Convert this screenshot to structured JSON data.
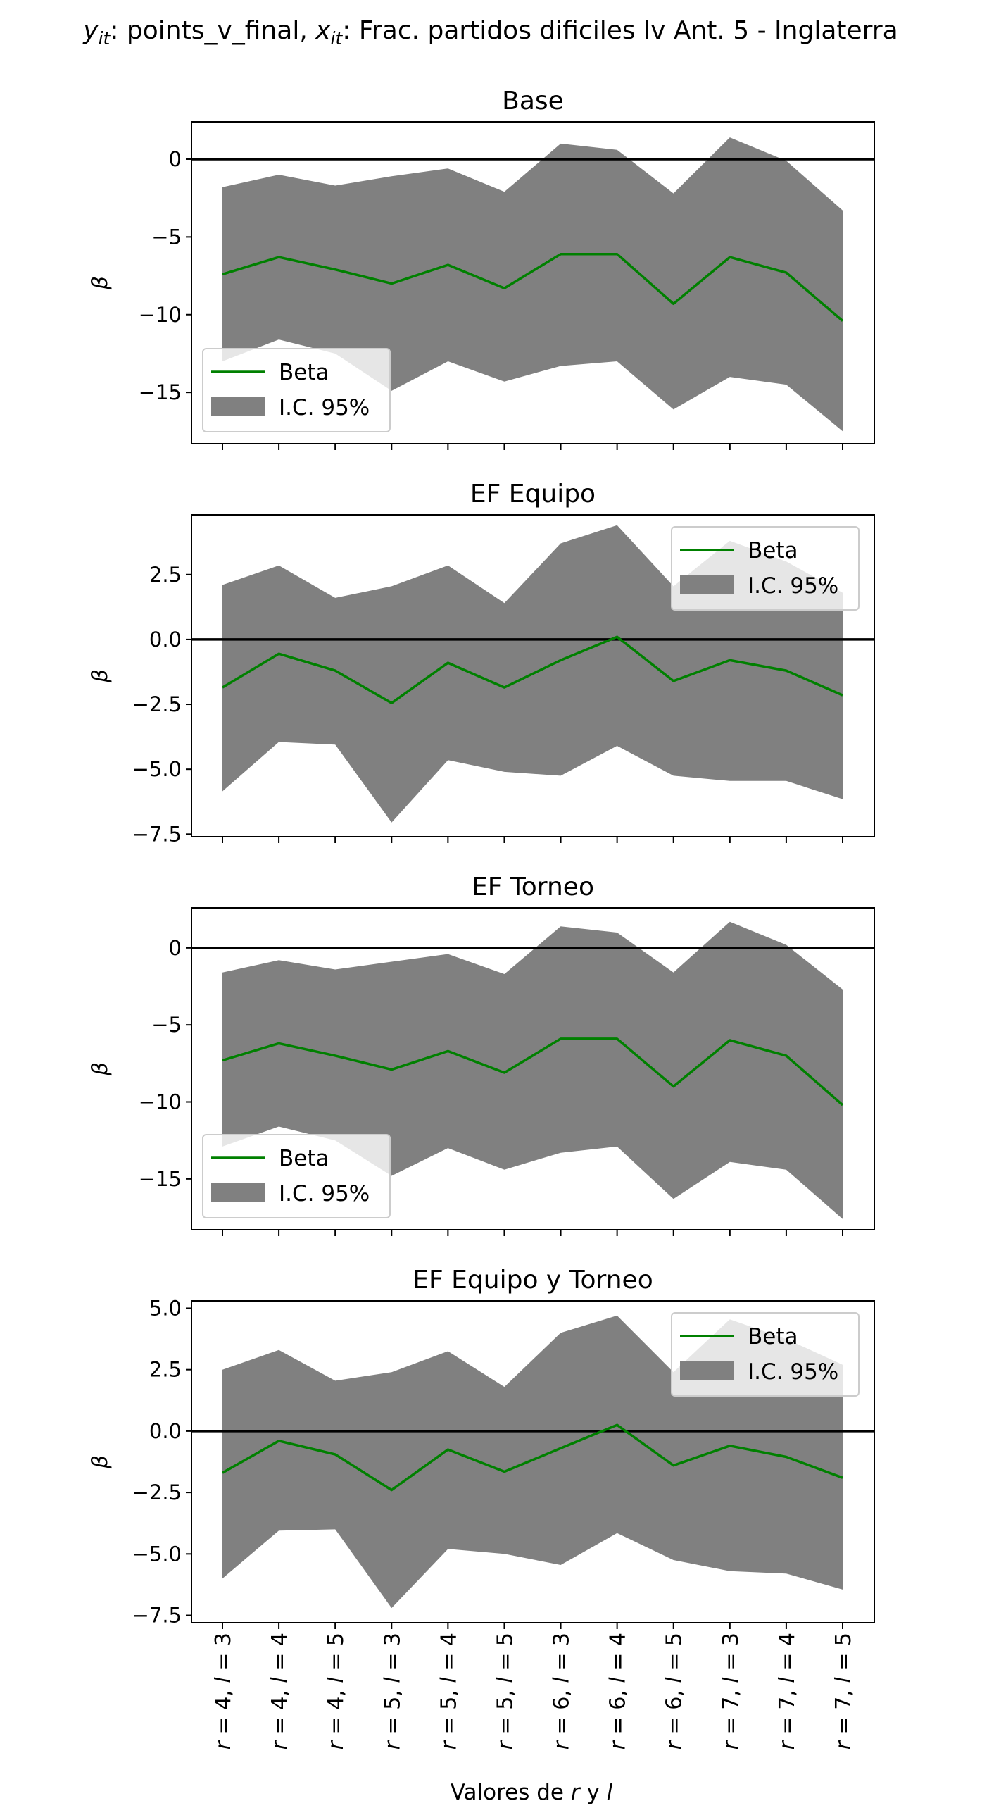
{
  "suptitle": {
    "y_sym": "y",
    "y_sub": "it",
    "y_rest": ": points_v_final, ",
    "x_sym": "x",
    "x_sub": "it",
    "x_rest": ": Frac. partidos dificiles lv Ant. 5 - Inglaterra"
  },
  "xlabel": {
    "pre": "Valores de ",
    "r": "r",
    "mid": " y ",
    "l": "l"
  },
  "x_category_parts": [
    {
      "r": "4",
      "l": "3"
    },
    {
      "r": "4",
      "l": "4"
    },
    {
      "r": "4",
      "l": "5"
    },
    {
      "r": "5",
      "l": "3"
    },
    {
      "r": "5",
      "l": "4"
    },
    {
      "r": "5",
      "l": "5"
    },
    {
      "r": "6",
      "l": "3"
    },
    {
      "r": "6",
      "l": "4"
    },
    {
      "r": "6",
      "l": "5"
    },
    {
      "r": "7",
      "l": "3"
    },
    {
      "r": "7",
      "l": "4"
    },
    {
      "r": "7",
      "l": "5"
    }
  ],
  "colors": {
    "beta": "#008000",
    "ci": "#808080",
    "zero": "#000000",
    "frame": "#000000"
  },
  "chart_data": [
    {
      "type": "line",
      "title": "Base",
      "ylabel": "β",
      "categories": [
        "r = 4, l = 3",
        "r = 4, l = 4",
        "r = 4, l = 5",
        "r = 5, l = 3",
        "r = 5, l = 4",
        "r = 5, l = 5",
        "r = 6, l = 3",
        "r = 6, l = 4",
        "r = 6, l = 5",
        "r = 7, l = 3",
        "r = 7, l = 4",
        "r = 7, l = 5"
      ],
      "series": [
        {
          "name": "Beta",
          "values": [
            -7.4,
            -6.3,
            -7.1,
            -8.0,
            -6.8,
            -8.3,
            -6.1,
            -6.1,
            -9.3,
            -6.3,
            -7.3,
            -10.4
          ]
        },
        {
          "name": "I.C. 95%",
          "type": "band",
          "lower": [
            -13.0,
            -11.6,
            -12.5,
            -14.9,
            -13.0,
            -14.3,
            -13.3,
            -13.0,
            -16.1,
            -14.0,
            -14.5,
            -17.5
          ],
          "upper": [
            -1.8,
            -1.0,
            -1.7,
            -1.1,
            -0.6,
            -2.1,
            1.0,
            0.6,
            -2.2,
            1.4,
            -0.1,
            -3.3
          ]
        }
      ],
      "ylim": [
        -18.3,
        2.4
      ],
      "yticks": [
        0,
        -5,
        -10,
        -15
      ],
      "hline": 0,
      "grid": false,
      "legend": "lower-left"
    },
    {
      "type": "line",
      "title": "EF Equipo",
      "ylabel": "β",
      "categories": [
        "r = 4, l = 3",
        "r = 4, l = 4",
        "r = 4, l = 5",
        "r = 5, l = 3",
        "r = 5, l = 4",
        "r = 5, l = 5",
        "r = 6, l = 3",
        "r = 6, l = 4",
        "r = 6, l = 5",
        "r = 7, l = 3",
        "r = 7, l = 4",
        "r = 7, l = 5"
      ],
      "series": [
        {
          "name": "Beta",
          "values": [
            -1.85,
            -0.55,
            -1.2,
            -2.45,
            -0.9,
            -1.85,
            -0.8,
            0.1,
            -1.6,
            -0.8,
            -1.2,
            -2.15
          ]
        },
        {
          "name": "I.C. 95%",
          "type": "band",
          "lower": [
            -5.85,
            -3.95,
            -4.05,
            -7.05,
            -4.65,
            -5.1,
            -5.25,
            -4.1,
            -5.25,
            -5.45,
            -5.45,
            -6.15
          ],
          "upper": [
            2.1,
            2.85,
            1.6,
            2.05,
            2.85,
            1.4,
            3.7,
            4.4,
            2.05,
            3.8,
            3.0,
            1.8
          ]
        }
      ],
      "ylim": [
        -7.6,
        4.8
      ],
      "yticks": [
        2.5,
        0.0,
        -2.5,
        -5.0,
        -7.5
      ],
      "hline": 0,
      "grid": false,
      "legend": "top-right"
    },
    {
      "type": "line",
      "title": "EF Torneo",
      "ylabel": "β",
      "categories": [
        "r = 4, l = 3",
        "r = 4, l = 4",
        "r = 4, l = 5",
        "r = 5, l = 3",
        "r = 5, l = 4",
        "r = 5, l = 5",
        "r = 6, l = 3",
        "r = 6, l = 4",
        "r = 6, l = 5",
        "r = 7, l = 3",
        "r = 7, l = 4",
        "r = 7, l = 5"
      ],
      "series": [
        {
          "name": "Beta",
          "values": [
            -7.3,
            -6.2,
            -7.0,
            -7.9,
            -6.7,
            -8.1,
            -5.9,
            -5.9,
            -9.0,
            -6.0,
            -7.0,
            -10.2
          ]
        },
        {
          "name": "I.C. 95%",
          "type": "band",
          "lower": [
            -12.9,
            -11.6,
            -12.5,
            -14.8,
            -13.0,
            -14.4,
            -13.3,
            -12.9,
            -16.3,
            -13.9,
            -14.4,
            -17.6
          ],
          "upper": [
            -1.6,
            -0.8,
            -1.4,
            -0.9,
            -0.4,
            -1.7,
            1.4,
            1.0,
            -1.6,
            1.7,
            0.2,
            -2.7
          ]
        }
      ],
      "ylim": [
        -18.3,
        2.6
      ],
      "yticks": [
        0,
        -5,
        -10,
        -15
      ],
      "hline": 0,
      "grid": false,
      "legend": "lower-left"
    },
    {
      "type": "line",
      "title": "EF Equipo y Torneo",
      "ylabel": "β",
      "categories": [
        "r = 4, l = 3",
        "r = 4, l = 4",
        "r = 4, l = 5",
        "r = 5, l = 3",
        "r = 5, l = 4",
        "r = 5, l = 5",
        "r = 6, l = 3",
        "r = 6, l = 4",
        "r = 6, l = 5",
        "r = 7, l = 3",
        "r = 7, l = 4",
        "r = 7, l = 5"
      ],
      "series": [
        {
          "name": "Beta",
          "values": [
            -1.7,
            -0.4,
            -0.95,
            -2.4,
            -0.75,
            -1.65,
            -0.7,
            0.25,
            -1.4,
            -0.6,
            -1.05,
            -1.9
          ]
        },
        {
          "name": "I.C. 95%",
          "type": "band",
          "lower": [
            -6.0,
            -4.05,
            -4.0,
            -7.2,
            -4.8,
            -5.0,
            -5.45,
            -4.15,
            -5.25,
            -5.7,
            -5.8,
            -6.45
          ],
          "upper": [
            2.5,
            3.3,
            2.05,
            2.4,
            3.25,
            1.8,
            4.0,
            4.7,
            2.4,
            4.55,
            3.75,
            2.7
          ]
        }
      ],
      "ylim": [
        -7.8,
        5.3
      ],
      "yticks": [
        5.0,
        2.5,
        0.0,
        -2.5,
        -5.0,
        -7.5
      ],
      "hline": 0,
      "grid": false,
      "legend": "top-right"
    }
  ]
}
